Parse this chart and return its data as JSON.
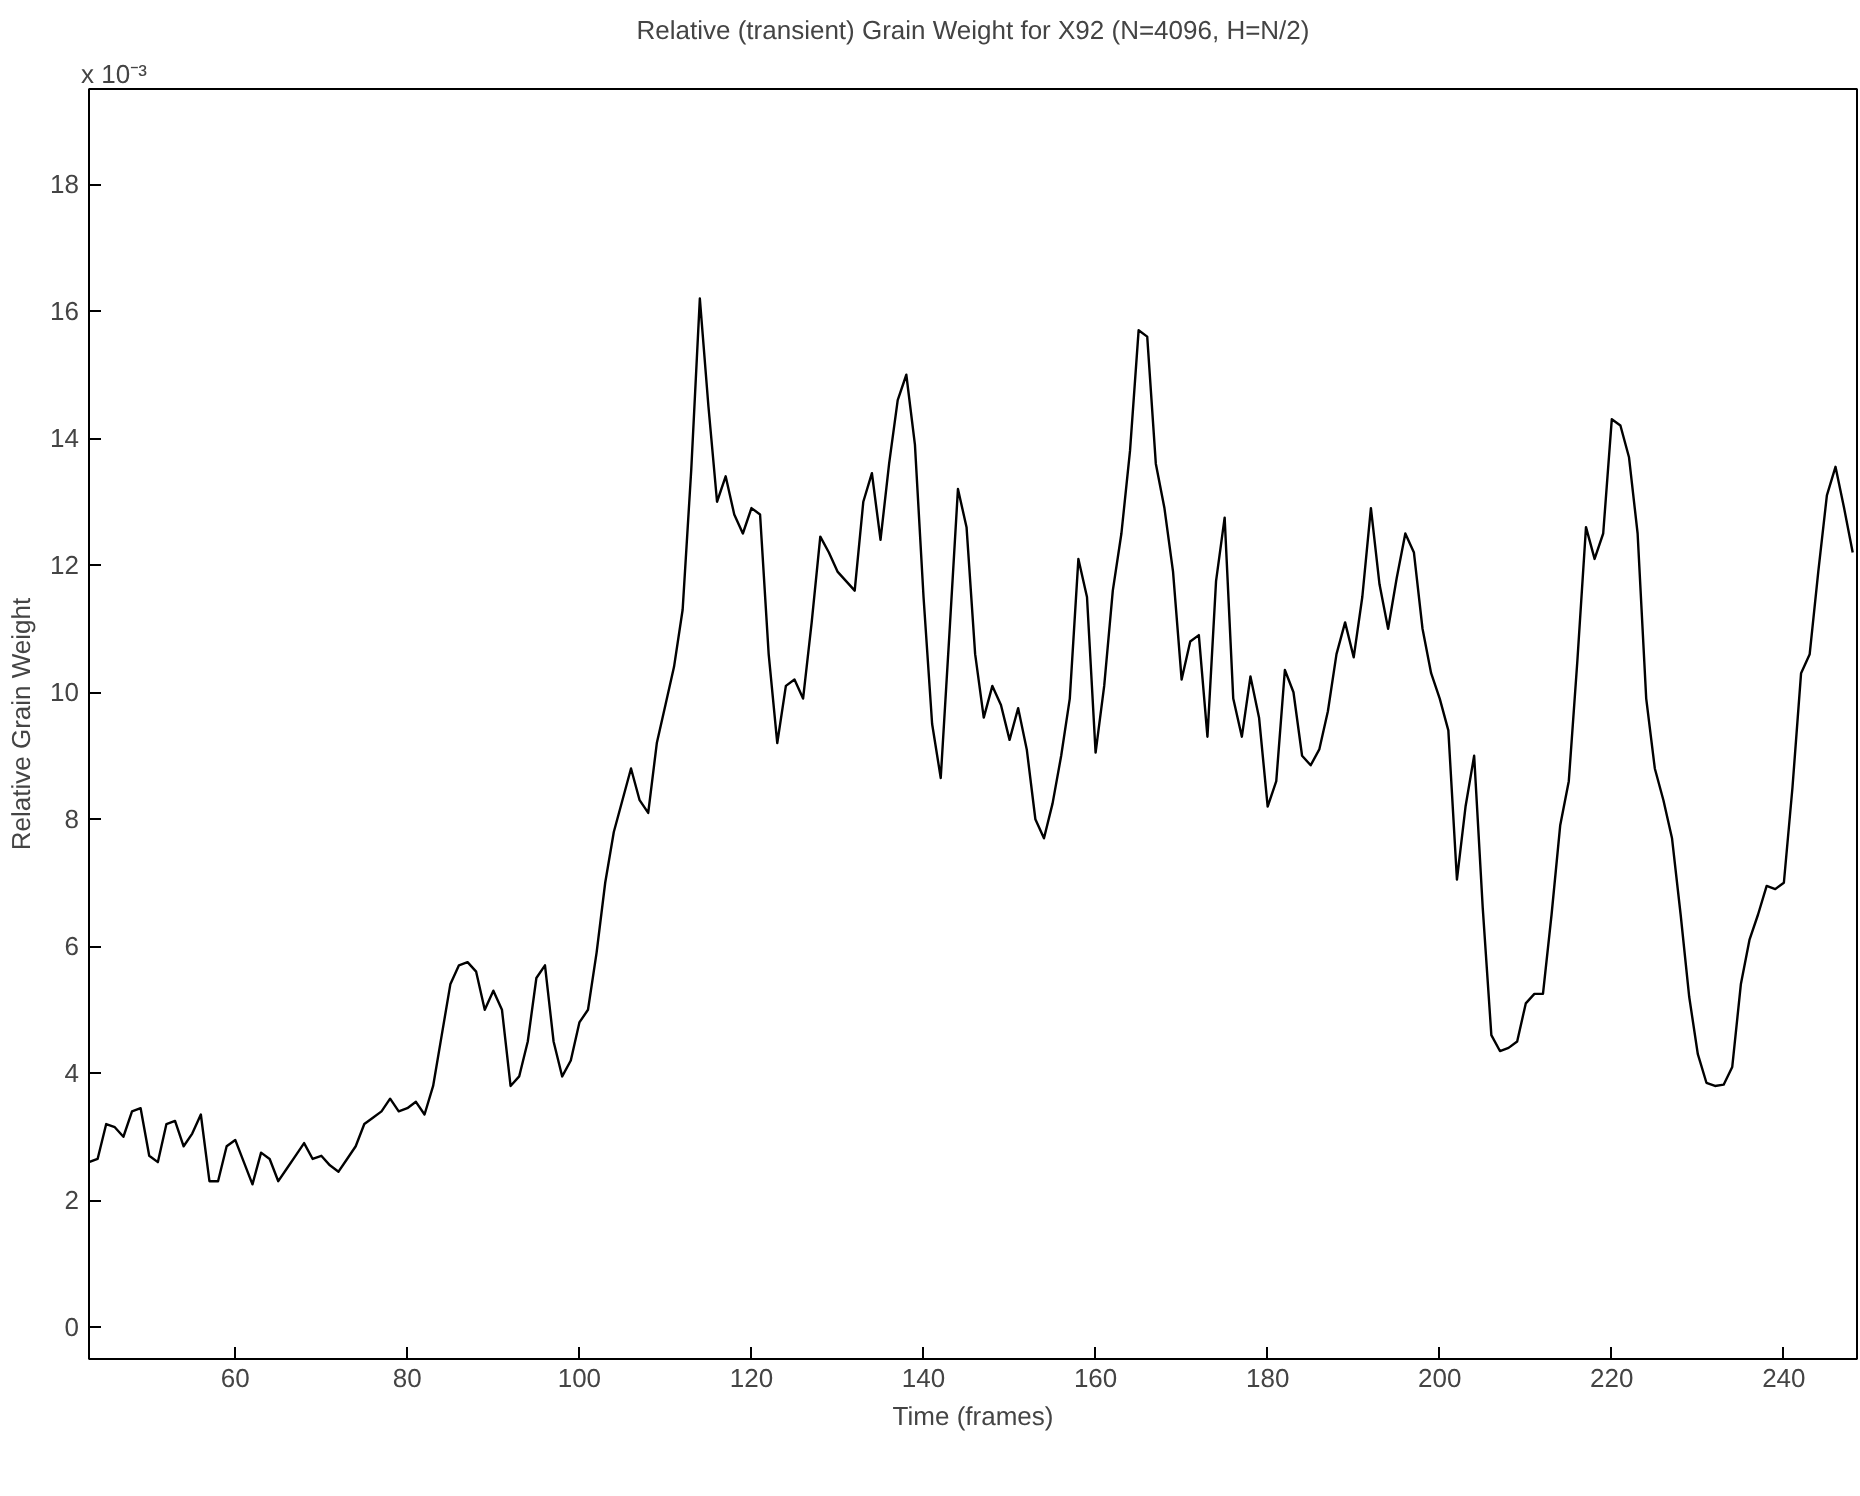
{
  "chart_data": {
    "type": "line",
    "title": "Relative (transient) Grain Weight for X92 (N=4096, H=N/2)",
    "xlabel": "Time (frames)",
    "ylabel": "Relative Grain Weight",
    "annotations": [
      "x 10⁻³"
    ],
    "x": [
      43,
      44,
      45,
      46,
      47,
      48,
      49,
      50,
      51,
      52,
      53,
      54,
      55,
      56,
      57,
      58,
      59,
      60,
      61,
      62,
      63,
      64,
      65,
      66,
      67,
      68,
      69,
      70,
      71,
      72,
      73,
      74,
      75,
      76,
      77,
      78,
      79,
      80,
      81,
      82,
      83,
      84,
      85,
      86,
      87,
      88,
      89,
      90,
      91,
      92,
      93,
      94,
      95,
      96,
      97,
      98,
      99,
      100,
      101,
      102,
      103,
      104,
      105,
      106,
      107,
      108,
      109,
      110,
      111,
      112,
      113,
      114,
      115,
      116,
      117,
      118,
      119,
      120,
      121,
      122,
      123,
      124,
      125,
      126,
      127,
      128,
      129,
      130,
      131,
      132,
      133,
      134,
      135,
      136,
      137,
      138,
      139,
      140,
      141,
      142,
      143,
      144,
      145,
      146,
      147,
      148,
      149,
      150,
      151,
      152,
      153,
      154,
      155,
      156,
      157,
      158,
      159,
      160,
      161,
      162,
      163,
      164,
      165,
      166,
      167,
      168,
      169,
      170,
      171,
      172,
      173,
      174,
      175,
      176,
      177,
      178,
      179,
      180,
      181,
      182,
      183,
      184,
      185,
      186,
      187,
      188,
      189,
      190,
      191,
      192,
      193,
      194,
      195,
      196,
      197,
      198,
      199,
      200,
      201,
      202,
      203,
      204,
      205,
      206,
      207,
      208,
      209,
      210,
      211,
      212,
      213,
      214,
      215,
      216,
      217,
      218,
      219,
      220,
      221,
      222,
      223,
      224,
      225,
      226,
      227,
      228,
      229,
      230,
      231,
      232,
      233,
      234,
      235,
      236,
      237,
      238,
      239,
      240,
      241,
      242,
      243,
      244,
      245,
      246,
      247,
      248
    ],
    "series": [
      {
        "color": "#000000",
        "values": [
          2.6,
          2.65,
          3.2,
          3.15,
          3.0,
          3.4,
          3.45,
          2.7,
          2.6,
          3.2,
          3.25,
          2.85,
          3.05,
          3.35,
          2.3,
          2.3,
          2.85,
          2.95,
          2.6,
          2.25,
          2.75,
          2.65,
          2.3,
          2.5,
          2.7,
          2.9,
          2.65,
          2.7,
          2.55,
          2.45,
          2.65,
          2.85,
          3.2,
          3.3,
          3.4,
          3.6,
          3.4,
          3.45,
          3.55,
          3.35,
          3.8,
          4.6,
          5.4,
          5.7,
          5.75,
          5.6,
          5.0,
          5.3,
          5.0,
          3.8,
          3.95,
          4.5,
          5.5,
          5.7,
          4.5,
          3.95,
          4.2,
          4.8,
          5.0,
          5.9,
          7.0,
          7.8,
          8.3,
          8.8,
          8.3,
          8.1,
          9.2,
          9.8,
          10.4,
          11.3,
          13.5,
          16.2,
          14.5,
          13.0,
          13.4,
          12.8,
          12.5,
          12.9,
          12.8,
          10.6,
          9.2,
          10.1,
          10.2,
          9.9,
          11.1,
          12.45,
          12.2,
          11.9,
          11.75,
          11.6,
          13.0,
          13.45,
          12.4,
          13.6,
          14.6,
          15.0,
          13.9,
          11.5,
          9.5,
          8.65,
          10.9,
          13.2,
          12.6,
          10.6,
          9.6,
          10.1,
          9.8,
          9.25,
          9.75,
          9.1,
          8.0,
          7.7,
          8.25,
          9.0,
          9.9,
          12.1,
          11.5,
          9.05,
          10.1,
          11.6,
          12.5,
          13.8,
          15.7,
          15.6,
          13.6,
          12.9,
          11.9,
          10.2,
          10.8,
          10.9,
          9.3,
          11.75,
          12.75,
          9.9,
          9.3,
          10.25,
          9.6,
          8.2,
          8.6,
          10.35,
          10.0,
          9.0,
          8.85,
          9.1,
          9.7,
          10.6,
          11.1,
          10.55,
          11.5,
          12.9,
          11.7,
          11.0,
          11.8,
          12.5,
          12.2,
          11.0,
          10.3,
          9.9,
          9.4,
          7.05,
          8.2,
          9.0,
          6.6,
          4.6,
          4.35,
          4.4,
          4.5,
          5.1,
          5.25,
          5.25,
          6.5,
          7.9,
          8.6,
          10.5,
          12.6,
          12.1,
          12.5,
          14.3,
          14.2,
          13.7,
          12.5,
          9.9,
          8.8,
          8.3,
          7.7,
          6.5,
          5.2,
          4.3,
          3.85,
          3.8,
          3.82,
          4.1,
          5.4,
          6.1,
          6.5,
          6.95,
          6.9,
          7.0,
          8.5,
          10.3,
          10.6,
          11.9,
          13.1,
          13.55,
          12.9,
          12.2
        ]
      }
    ],
    "xlim": [
      43,
      248.5
    ],
    "ylim": [
      -0.5,
      19.5
    ],
    "xticks": [
      60,
      80,
      100,
      120,
      140,
      160,
      180,
      200,
      220,
      240
    ],
    "yticks": [
      0,
      2,
      4,
      6,
      8,
      10,
      12,
      14,
      16,
      18
    ],
    "grid": false,
    "line_style": "solid"
  }
}
